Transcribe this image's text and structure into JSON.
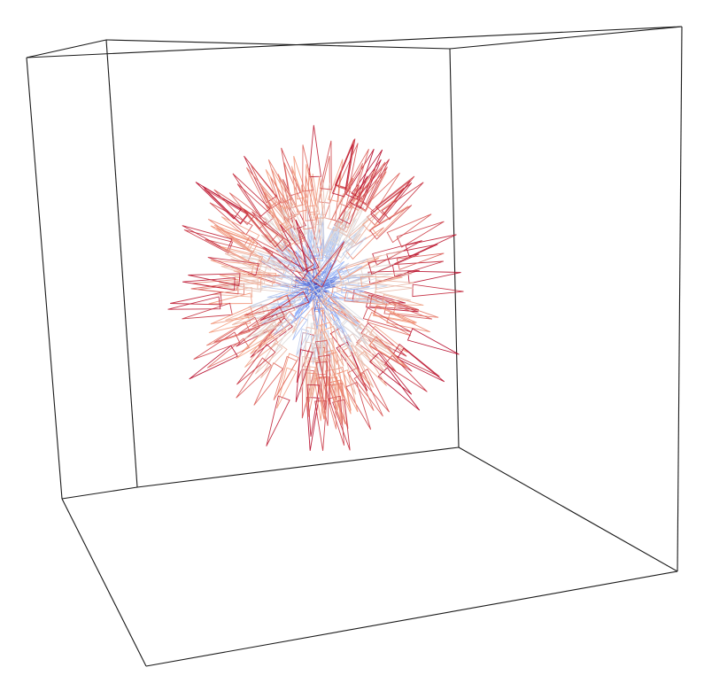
{
  "chart_data": {
    "type": "3d-vector-field",
    "title": "",
    "description_elements": [
      "wireframe-box",
      "radial-arrows"
    ],
    "colorscale": [
      "#3b4cc0",
      "#8db0fe",
      "#dddddd",
      "#f49a7b",
      "#b40426"
    ],
    "box_color": "#1a1a1a",
    "vectors": {
      "count": 480,
      "direction": "radial-outward",
      "magnitude_range": [
        0.0,
        1.0
      ],
      "shell_radius": 1.0,
      "seed": 7
    }
  }
}
